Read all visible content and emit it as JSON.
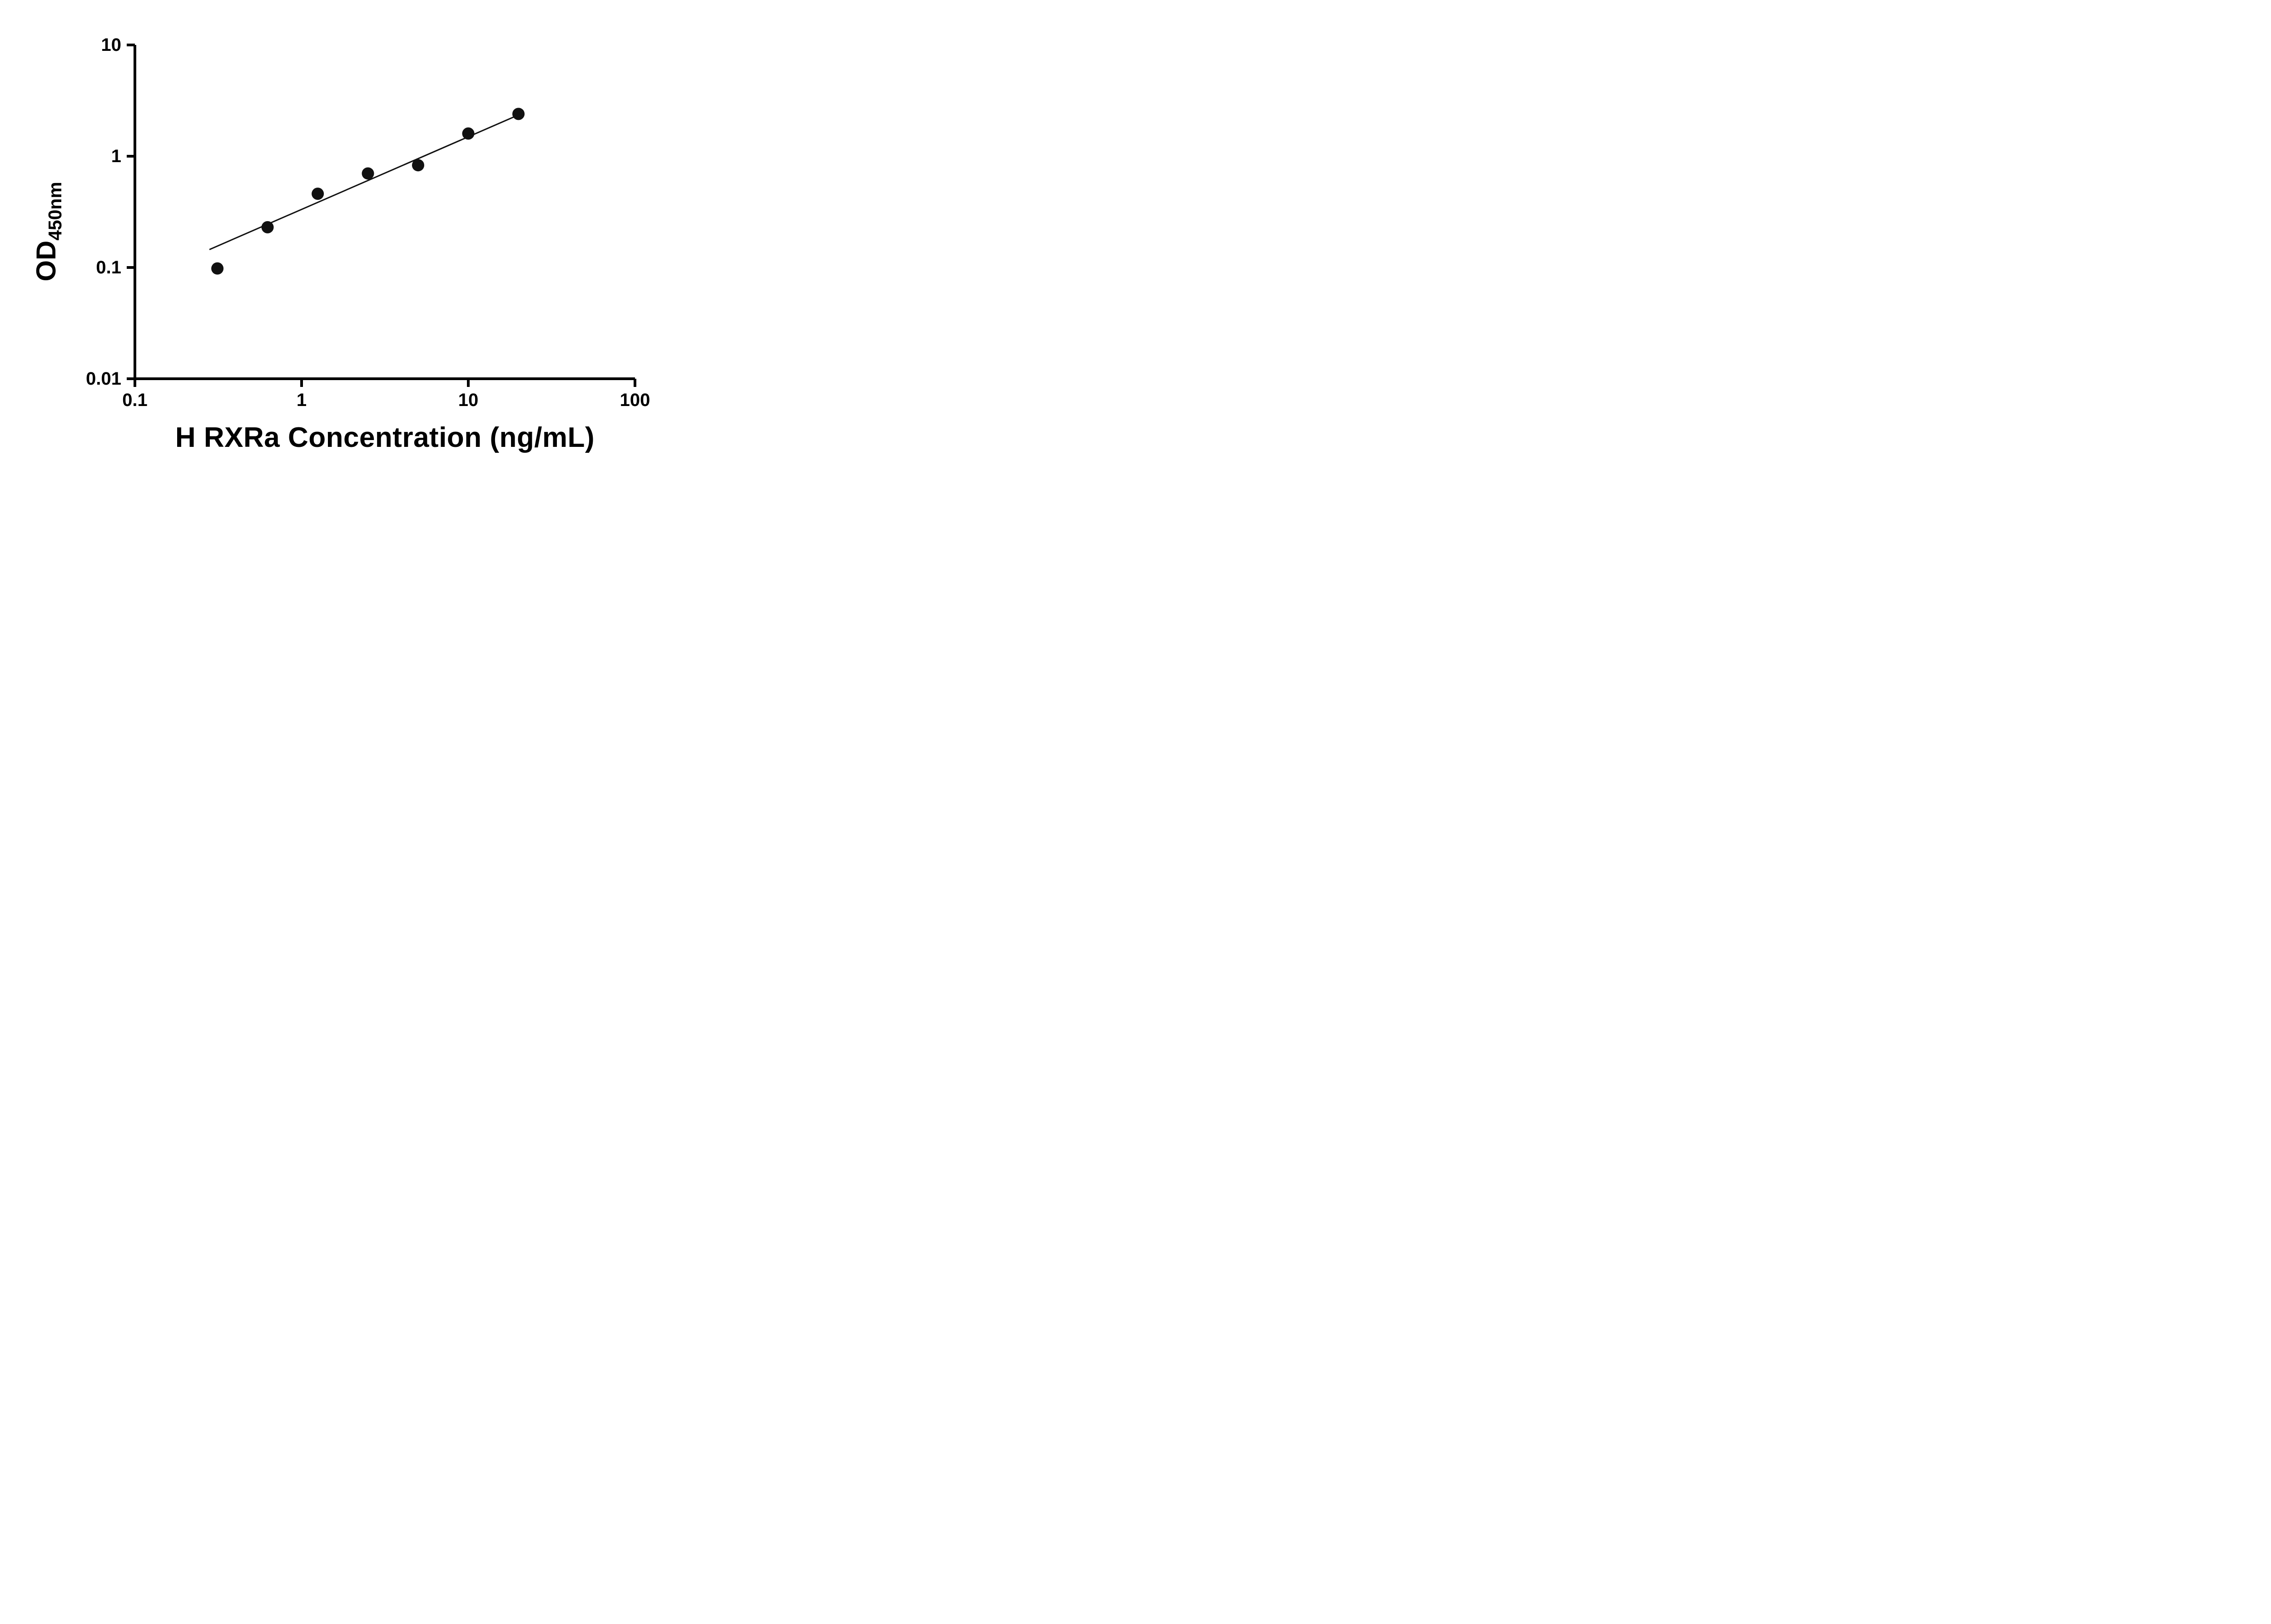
{
  "figure": {
    "background": "#ffffff"
  },
  "chart_data": {
    "type": "scatter",
    "title": "",
    "xlabel": "H RXRa Concentration (ng/mL)",
    "ylabel": "OD",
    "ylabel_subscript": "450nm",
    "x_scale": "log",
    "y_scale": "log",
    "xlim": [
      0.1,
      100
    ],
    "ylim": [
      0.01,
      10
    ],
    "grid": false,
    "legend": null,
    "axis_color": "#000000",
    "marker_color": "#111111",
    "x_ticks": [
      {
        "value": 0.1,
        "label": "0.1"
      },
      {
        "value": 1,
        "label": "1"
      },
      {
        "value": 10,
        "label": "10"
      },
      {
        "value": 100,
        "label": "100"
      }
    ],
    "y_ticks": [
      {
        "value": 10,
        "label": "10"
      },
      {
        "value": 1,
        "label": "1"
      },
      {
        "value": 0.1,
        "label": "0.1"
      },
      {
        "value": 0.01,
        "label": "0.01"
      }
    ],
    "points": [
      {
        "x": 0.3125,
        "y": 0.098
      },
      {
        "x": 0.625,
        "y": 0.23
      },
      {
        "x": 1.25,
        "y": 0.46
      },
      {
        "x": 2.5,
        "y": 0.7
      },
      {
        "x": 5,
        "y": 0.83
      },
      {
        "x": 10,
        "y": 1.6
      },
      {
        "x": 20,
        "y": 2.4
      }
    ],
    "trend_line": {
      "x1": 0.28,
      "y1": 0.145,
      "x2": 20,
      "y2": 2.35,
      "color": "#111111"
    }
  }
}
